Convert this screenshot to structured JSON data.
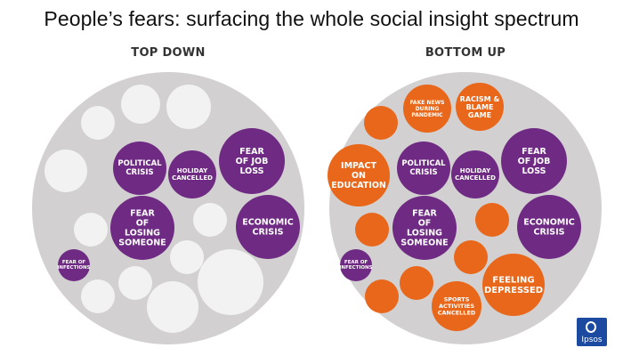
{
  "title": "People’s fears: surfacing the whole social insight spectrum",
  "colors": {
    "panel": "#d2d0d1",
    "blank_bubble": "#f2f2f2",
    "purple": "#6f2b83",
    "orange": "#e8671a",
    "logo": "#1b4aa0"
  },
  "panels": [
    {
      "title": "TOP DOWN",
      "labels": [
        "POLITICAL CRISIS",
        "HOLIDAY CANCELLED",
        "FEAR OF JOB LOSS",
        "FEAR OF LOSING SOMEONE",
        "ECONOMIC CRISIS",
        "FEAR OF INFECTIONS"
      ]
    },
    {
      "title": "BOTTOM UP",
      "labels": [
        "FAKE NEWS DURING PANDEMIC",
        "RACISM & BLAME GAME",
        "IMPACT ON EDUCATION",
        "POLITICAL CRISIS",
        "HOLIDAY CANCELLED",
        "FEAR OF JOB LOSS",
        "FEAR OF LOSING SOMEONE",
        "ECONOMIC CRISIS",
        "FEAR OF INFECTIONS",
        "FEELING DEPRESSED",
        "SPORTS ACTIVITIES CANCELLED"
      ]
    }
  ],
  "logo_text": "Ipsos"
}
